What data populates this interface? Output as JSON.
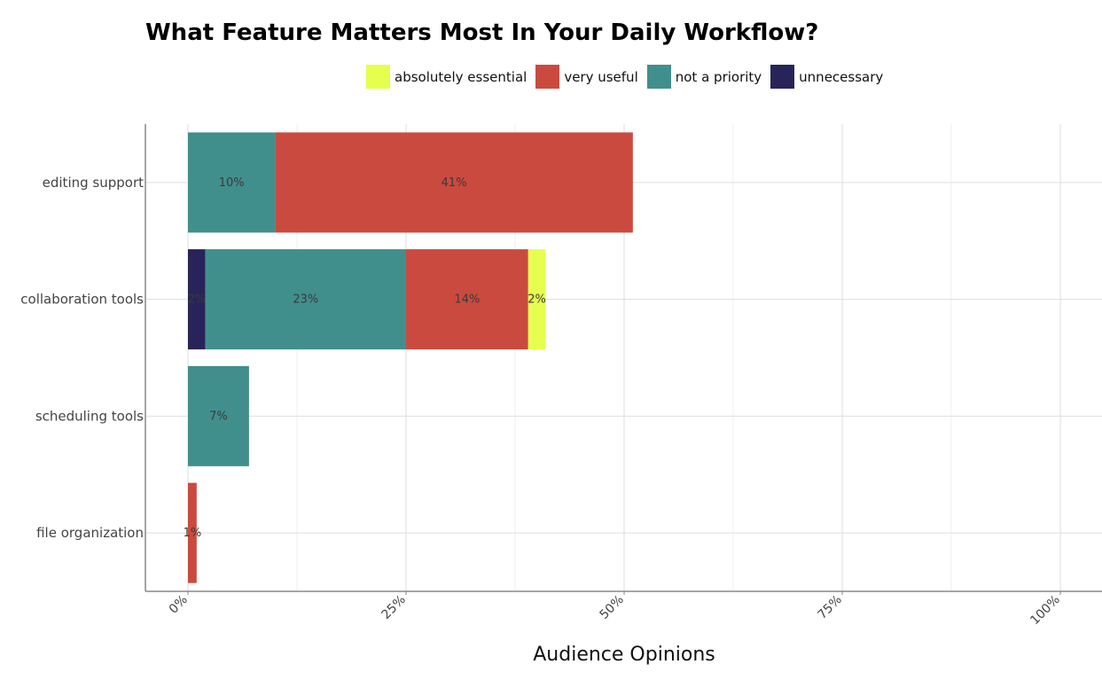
{
  "title": "What Feature Matters Most In Your Daily Workflow?",
  "legend": [
    {
      "label": "absolutely essential",
      "color": "#e6ff4f"
    },
    {
      "label": "very useful",
      "color": "#cb4a3f"
    },
    {
      "label": "not a priority",
      "color": "#418f8d"
    },
    {
      "label": "unnecessary",
      "color": "#282459"
    }
  ],
  "chart_data": {
    "type": "bar",
    "orientation": "horizontal",
    "stacked": true,
    "categories": [
      "editing support",
      "collaboration tools",
      "scheduling tools",
      "file organization"
    ],
    "stack_order": [
      "unnecessary",
      "not a priority",
      "very useful",
      "absolutely essential"
    ],
    "series": [
      {
        "name": "unnecessary",
        "color": "#282459",
        "values": [
          0,
          2,
          0,
          0
        ],
        "labels": [
          "",
          "2%",
          "",
          ""
        ]
      },
      {
        "name": "not a priority",
        "color": "#418f8d",
        "values": [
          10,
          23,
          7,
          0
        ],
        "labels": [
          "10%",
          "23%",
          "7%",
          ""
        ]
      },
      {
        "name": "very useful",
        "color": "#cb4a3f",
        "values": [
          41,
          14,
          0,
          1
        ],
        "labels": [
          "41%",
          "14%",
          "",
          "1%"
        ]
      },
      {
        "name": "absolutely essential",
        "color": "#e6ff4f",
        "values": [
          0,
          2,
          0,
          0
        ],
        "labels": [
          "",
          "2%",
          "",
          ""
        ]
      }
    ],
    "x_ticks": [
      "0%",
      "25%",
      "50%",
      "75%",
      "100%"
    ],
    "xlim": [
      0,
      110
    ],
    "xlabel": "Audience Opinions",
    "ylabel": "",
    "grid": true,
    "legend_position": "top"
  }
}
